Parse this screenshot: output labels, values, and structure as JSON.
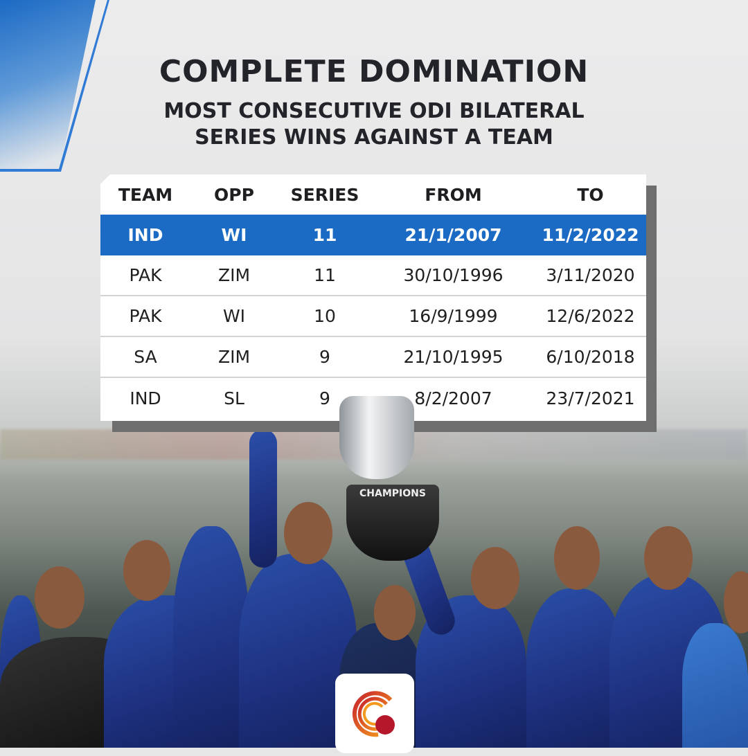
{
  "title": "COMPLETE DOMINATION",
  "subtitle_line1": "MOST CONSECUTIVE ODI BILATERAL",
  "subtitle_line2": "SERIES WINS AGAINST A TEAM",
  "table": {
    "headers": [
      "TEAM",
      "OPP",
      "SERIES",
      "FROM",
      "TO"
    ],
    "rows": [
      [
        "IND",
        "WI",
        "11",
        "21/1/2007",
        "11/2/2022"
      ],
      [
        "PAK",
        "ZIM",
        "11",
        "30/10/1996",
        "3/11/2020"
      ],
      [
        "PAK",
        "WI",
        "10",
        "16/9/1999",
        "12/6/2022"
      ],
      [
        "SA",
        "ZIM",
        "9",
        "21/10/1995",
        "6/10/2018"
      ],
      [
        "IND",
        "SL",
        "9",
        "8/2/2007",
        "23/7/2021"
      ]
    ],
    "highlight_color": "#1b6bc4"
  },
  "trophy_label": "CHAMPIONS"
}
